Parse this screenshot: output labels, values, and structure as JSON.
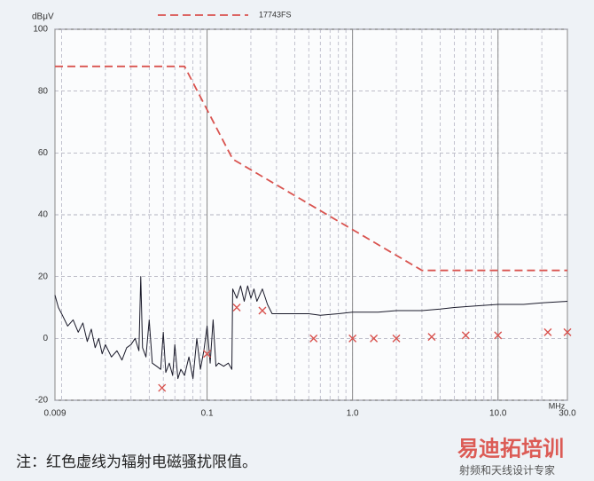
{
  "chart_data": {
    "type": "line",
    "x_label": "MHz",
    "y_label": "dBμV",
    "xscale": "log",
    "grid": true,
    "xlim": [
      0.009,
      30
    ],
    "ylim": [
      -20,
      100
    ],
    "xticks": [
      0.009,
      0.1,
      {
        "value": 1,
        "label": "1.0"
      },
      {
        "value": 10,
        "label": "10.0"
      },
      {
        "value": 30,
        "label": "30.0"
      }
    ],
    "yticks": [
      -20,
      0,
      20,
      40,
      60,
      80,
      100
    ],
    "series": [
      {
        "name": "17743FS",
        "color": "#d9534f",
        "style": "dashed",
        "x": [
          0.009,
          0.07,
          0.15,
          3,
          30
        ],
        "values": [
          88,
          88,
          58,
          22,
          22
        ]
      },
      {
        "color": "#1a1a2a",
        "style": "solid",
        "x": [
          0.009,
          0.0095,
          0.01,
          0.011,
          0.012,
          0.013,
          0.014,
          0.015,
          0.016,
          0.017,
          0.018,
          0.019,
          0.02,
          0.022,
          0.024,
          0.026,
          0.028,
          0.03,
          0.032,
          0.034,
          0.035,
          0.036,
          0.038,
          0.04,
          0.042,
          0.045,
          0.048,
          0.05,
          0.052,
          0.055,
          0.058,
          0.06,
          0.063,
          0.066,
          0.07,
          0.075,
          0.08,
          0.085,
          0.09,
          0.095,
          0.1,
          0.105,
          0.11,
          0.115,
          0.12,
          0.13,
          0.14,
          0.148,
          0.15,
          0.16,
          0.17,
          0.18,
          0.19,
          0.2,
          0.21,
          0.22,
          0.24,
          0.26,
          0.28,
          0.3,
          0.4,
          0.5,
          0.6,
          0.8,
          1,
          1.5,
          2,
          3,
          4,
          5,
          7,
          10,
          15,
          20,
          30
        ],
        "values": [
          14,
          10,
          8,
          4,
          6,
          2,
          5,
          -1,
          3,
          -3,
          0,
          -5,
          -2,
          -6,
          -4,
          -7,
          -3,
          -2,
          0,
          -4,
          20,
          -3,
          -6,
          6,
          -8,
          -9,
          -10,
          2,
          -11,
          -8,
          -12,
          -2,
          -13,
          -10,
          -12,
          -6,
          -13,
          0,
          -10,
          -4,
          4,
          -8,
          6,
          -9,
          -8,
          -9,
          -8,
          -10,
          16,
          13,
          17,
          12,
          17,
          13,
          16,
          12,
          16,
          11,
          8,
          8,
          8,
          8,
          7.5,
          8,
          8.5,
          8.5,
          9,
          9,
          9.5,
          10,
          10.5,
          11,
          11,
          11.5,
          12
        ]
      },
      {
        "color": "#d9534f",
        "style": "marker",
        "x": [
          0.049,
          0.1,
          0.16,
          0.24,
          0.54,
          1,
          1.4,
          2,
          3.5,
          6,
          10,
          22,
          30
        ],
        "values": [
          -16,
          -5,
          10,
          9,
          0,
          0,
          0,
          0,
          0.5,
          1,
          1,
          2,
          2
        ]
      }
    ]
  },
  "caption": "注：红色虚线为辐射电磁骚扰限值。",
  "watermark": {
    "brand": "易迪拓培训",
    "slogan": "射频和天线设计专家"
  }
}
